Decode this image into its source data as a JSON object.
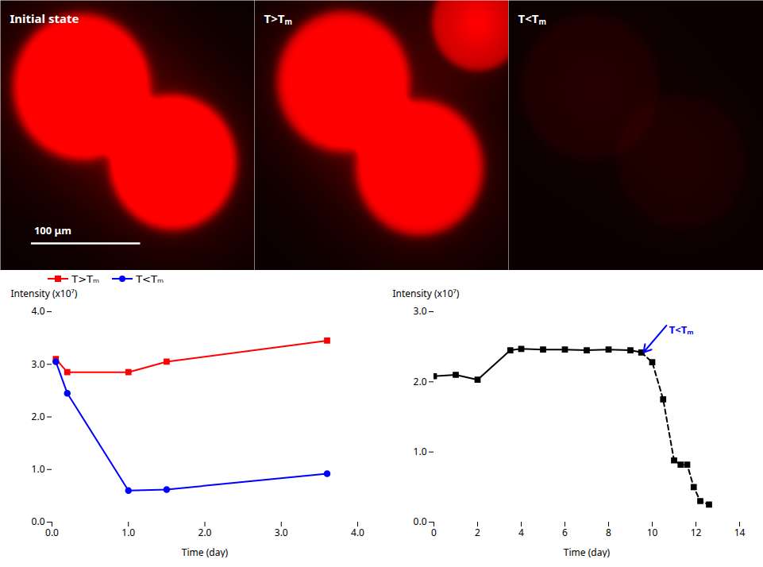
{
  "chart_data": [
    {
      "type": "image",
      "title": "Initial state",
      "color": "#ff0000",
      "xlim": [
        0,
        10
      ],
      "ylim": [
        0,
        10
      ],
      "tick_labels": false,
      "spheres": [
        {
          "x": 3.2,
          "y": 6.8,
          "r": 2.7,
          "intensity": 1.0
        },
        {
          "x": 6.8,
          "y": 4.0,
          "r": 2.5,
          "intensity": 1.0
        }
      ],
      "scalebar": {
        "x": [
          1.2,
          5.5
        ],
        "y": 1.0,
        "label": "100 μm"
      }
    },
    {
      "type": "image",
      "title": "T>Tₘ",
      "color": "#ff0000",
      "xlim": [
        0,
        10
      ],
      "ylim": [
        0,
        10
      ],
      "tick_labels": false,
      "spheres": [
        {
          "x": 3.5,
          "y": 7.0,
          "r": 2.6,
          "intensity": 0.92
        },
        {
          "x": 6.5,
          "y": 3.8,
          "r": 2.5,
          "intensity": 0.92
        },
        {
          "x": 8.8,
          "y": 9.2,
          "r": 1.8,
          "intensity": 0.7
        }
      ]
    },
    {
      "type": "image",
      "title": "T<Tₘ",
      "color": "#ff0000",
      "xlim": [
        0,
        10
      ],
      "ylim": [
        0,
        10
      ],
      "tick_labels": false,
      "spheres": [
        {
          "x": 3.2,
          "y": 6.8,
          "r": 2.7,
          "intensity": 0.08
        },
        {
          "x": 6.8,
          "y": 4.0,
          "r": 2.5,
          "intensity": 0.06
        }
      ]
    },
    {
      "type": "line",
      "xlabel": "Time (day)",
      "ylabel": "Intensity (x10⁷)",
      "xlim": [
        0,
        4
      ],
      "ylim": [
        0,
        4
      ],
      "xticks": [
        0,
        1,
        2,
        3,
        4
      ],
      "yticks": [
        0,
        1,
        2,
        3,
        4
      ],
      "legend": "upper left",
      "series": [
        {
          "name": "T>Tₘ",
          "color": "#ff0000",
          "marker": "square",
          "line_style": "solid",
          "x": [
            0.05,
            0.2,
            1.0,
            1.5,
            3.6
          ],
          "values": [
            3.1,
            2.85,
            2.85,
            3.05,
            3.45
          ]
        },
        {
          "name": "T<Tₘ",
          "color": "#0000ff",
          "marker": "circle",
          "line_style": "solid",
          "x": [
            0.05,
            0.2,
            1.0,
            1.5,
            3.6
          ],
          "values": [
            3.05,
            2.45,
            0.6,
            0.62,
            0.92
          ]
        }
      ]
    },
    {
      "type": "line",
      "xlabel": "Time (day)",
      "ylabel": "Intensity (x10⁷)",
      "xlim": [
        0,
        14
      ],
      "ylim": [
        0,
        3
      ],
      "xticks": [
        0,
        2,
        4,
        6,
        8,
        10,
        12,
        14
      ],
      "yticks": [
        0,
        1,
        2,
        3
      ],
      "series": [
        {
          "color": "#000000",
          "marker": "square",
          "line_style": "solid",
          "x": [
            0,
            1,
            2,
            3.5,
            4,
            5,
            6,
            7,
            8,
            9,
            9.5
          ],
          "values": [
            2.08,
            2.1,
            2.03,
            2.45,
            2.47,
            2.46,
            2.46,
            2.45,
            2.46,
            2.45,
            2.42
          ]
        },
        {
          "color": "#000000",
          "marker": "square",
          "line_style": "dashed",
          "x": [
            9.5,
            10.0,
            10.5,
            11.0,
            11.3,
            11.6,
            11.9,
            12.2,
            12.6
          ],
          "values": [
            2.42,
            2.28,
            1.75,
            0.88,
            0.82,
            0.82,
            0.5,
            0.3,
            0.25
          ]
        }
      ],
      "annotations": [
        {
          "text": "T<Tₘ",
          "x": 10.7,
          "y": 2.82,
          "arrow_x": 9.6,
          "arrow_y": 2.42,
          "color": "#0000ff"
        }
      ]
    }
  ]
}
